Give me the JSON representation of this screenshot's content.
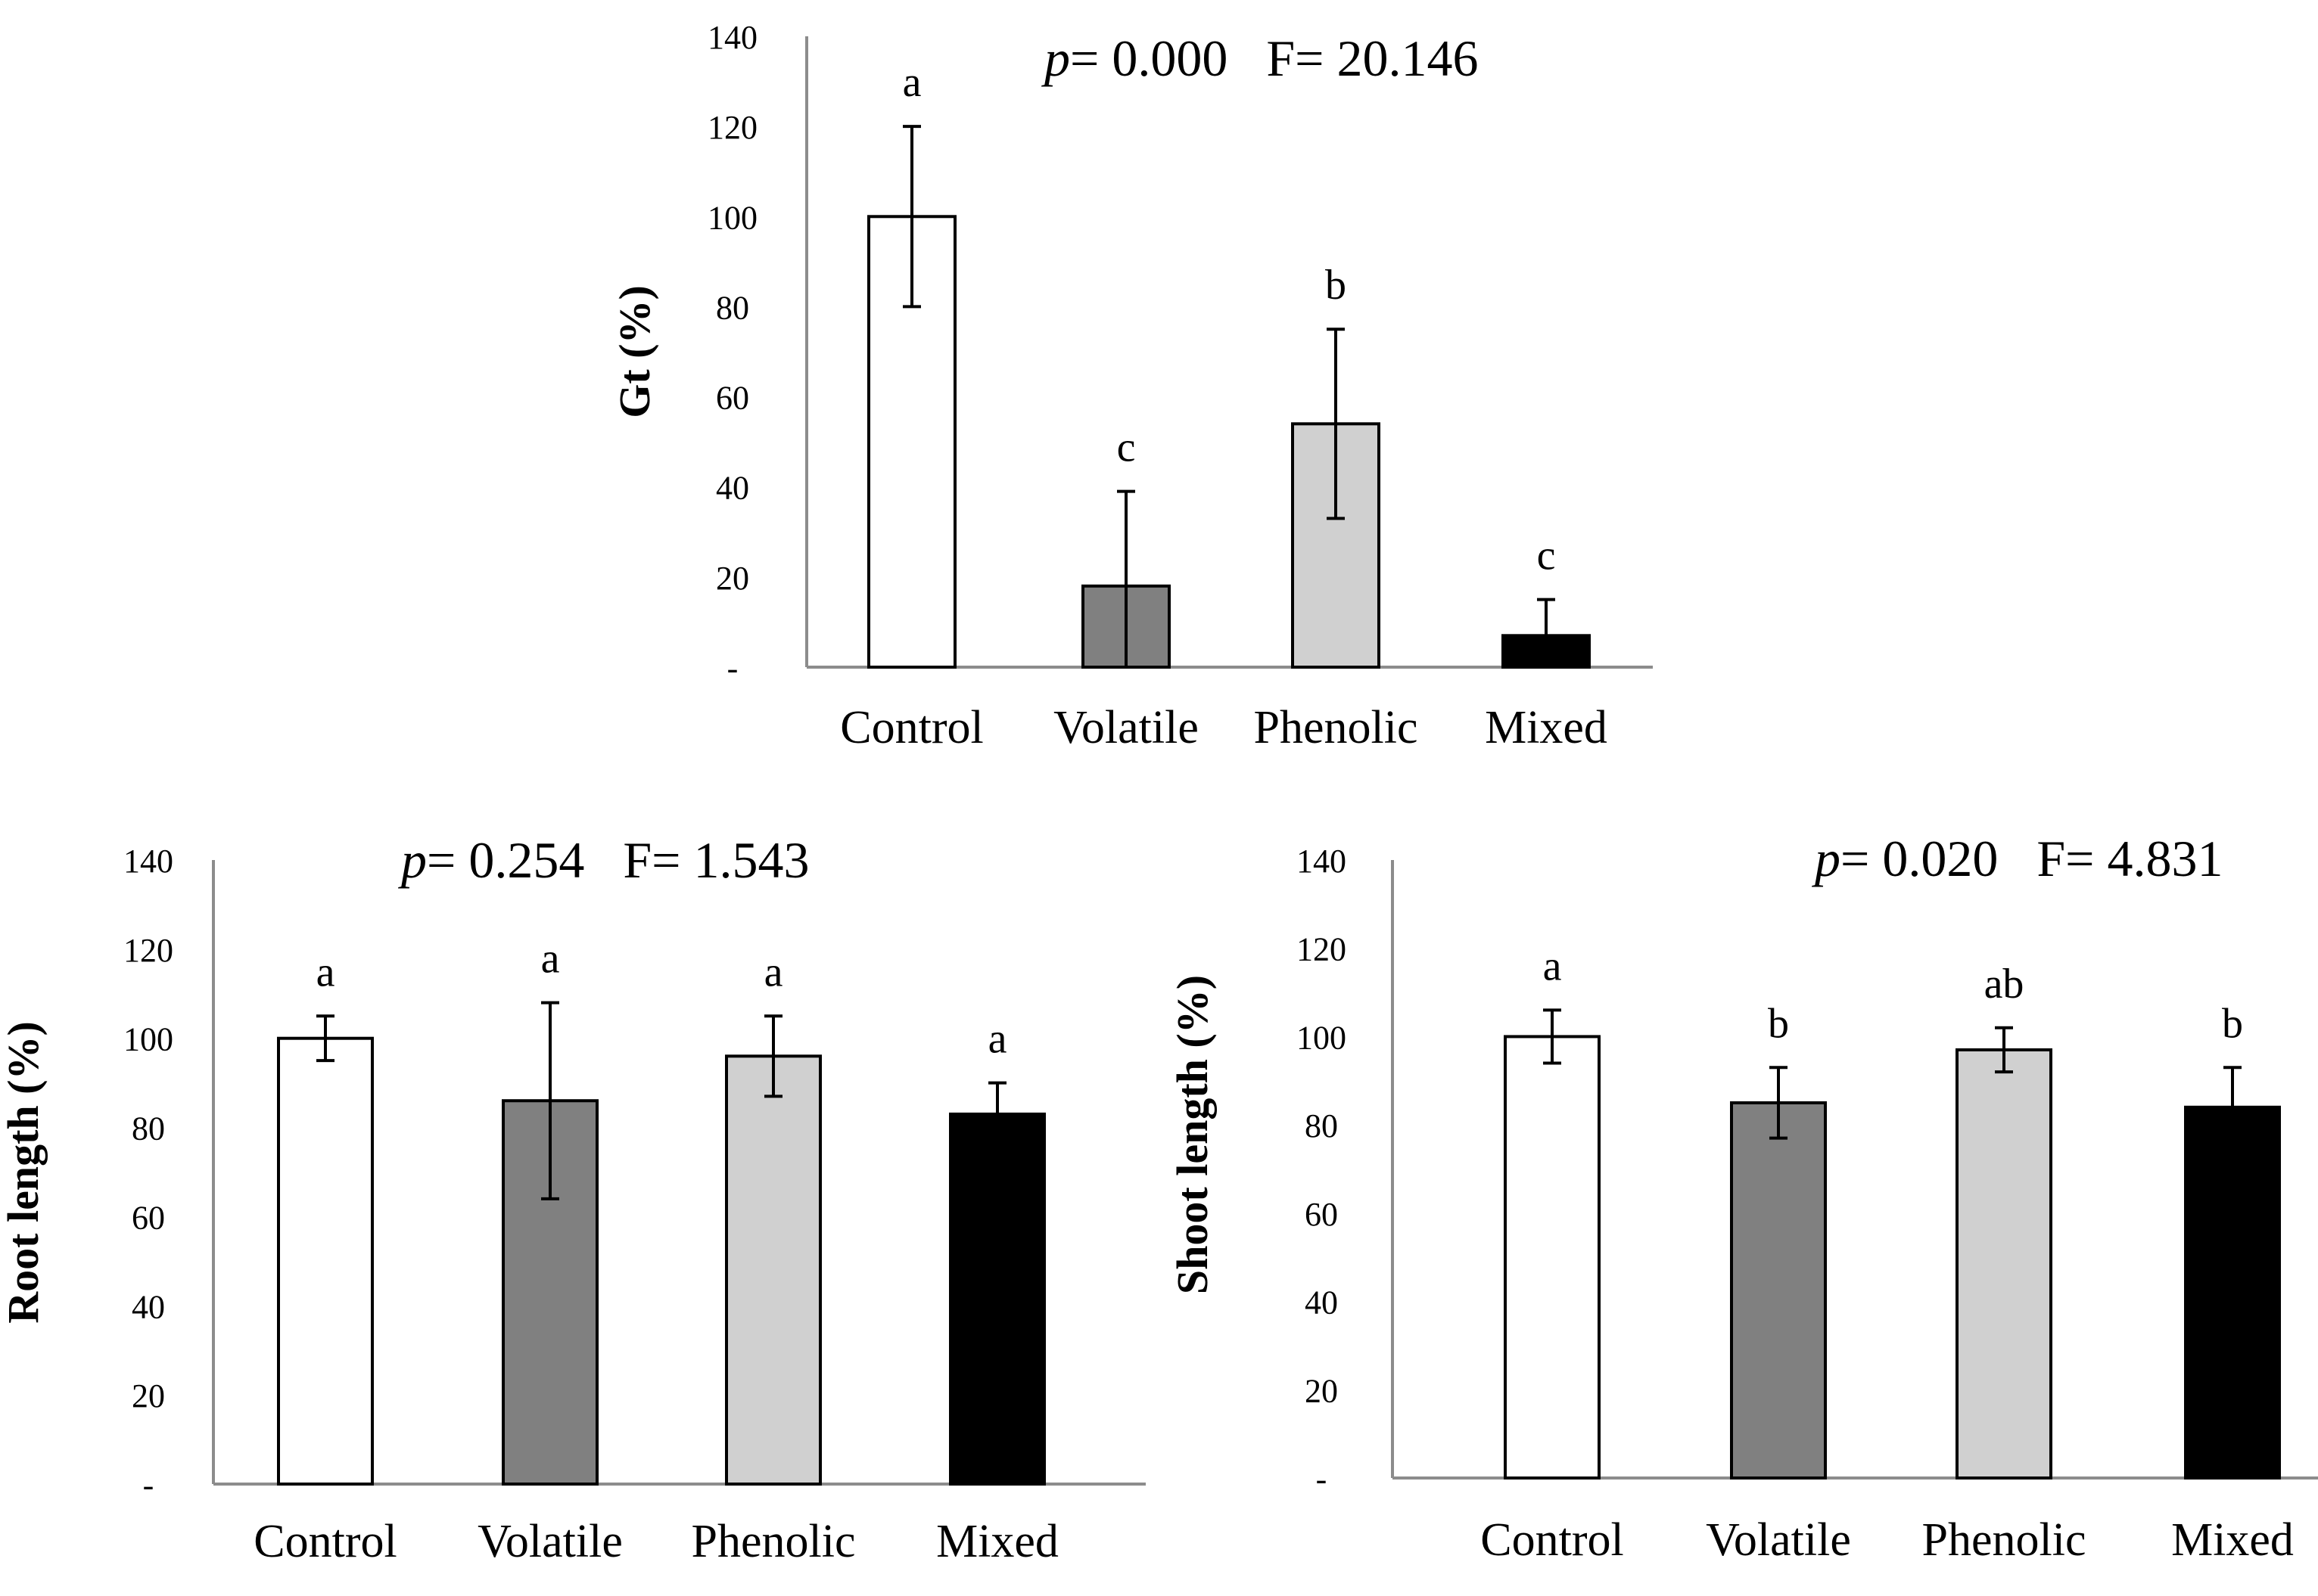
{
  "chart_data": [
    {
      "id": "gt",
      "type": "bar",
      "title_stat": {
        "p_label": "p",
        "p_value": "= 0.000",
        "f_value": "F= 20.146"
      },
      "ylabel": "Gt (%)",
      "xlabel": "",
      "ylim": [
        0,
        140
      ],
      "ytick_labels": [
        "-",
        "20",
        "40",
        "60",
        "80",
        "100",
        "120",
        "140"
      ],
      "categories": [
        "Control",
        "Volatile",
        "Phenolic",
        "Mixed"
      ],
      "values": [
        100,
        18,
        54,
        7
      ],
      "errors": [
        20,
        21,
        21,
        8
      ],
      "significance": [
        "a",
        "c",
        "b",
        "c"
      ],
      "colors": [
        "#ffffff",
        "#808080",
        "#d0d0d0",
        "#000000"
      ]
    },
    {
      "id": "root",
      "type": "bar",
      "title_stat": {
        "p_label": "p",
        "p_value": "= 0.254",
        "f_value": "F= 1.543"
      },
      "ylabel": "Root length (%)",
      "xlabel": "",
      "ylim": [
        0,
        140
      ],
      "ytick_labels": [
        "-",
        "20",
        "40",
        "60",
        "80",
        "100",
        "120",
        "140"
      ],
      "categories": [
        "Control",
        "Volatile",
        "Phenolic",
        "Mixed"
      ],
      "values": [
        100,
        86,
        96,
        83
      ],
      "errors": [
        5,
        22,
        9,
        7
      ],
      "significance": [
        "a",
        "a",
        "a",
        "a"
      ],
      "colors": [
        "#ffffff",
        "#808080",
        "#d0d0d0",
        "#000000"
      ]
    },
    {
      "id": "shoot",
      "type": "bar",
      "title_stat": {
        "p_label": "p",
        "p_value": "= 0.020",
        "f_value": "F= 4.831"
      },
      "ylabel": "Shoot length (%)",
      "xlabel": "",
      "ylim": [
        0,
        140
      ],
      "ytick_labels": [
        "-",
        "20",
        "40",
        "60",
        "80",
        "100",
        "120",
        "140"
      ],
      "categories": [
        "Control",
        "Volatile",
        "Phenolic",
        "Mixed"
      ],
      "values": [
        100,
        85,
        97,
        84
      ],
      "errors": [
        6,
        8,
        5,
        9
      ],
      "significance": [
        "a",
        "b",
        "ab",
        "b"
      ],
      "colors": [
        "#ffffff",
        "#808080",
        "#d0d0d0",
        "#000000"
      ]
    }
  ]
}
